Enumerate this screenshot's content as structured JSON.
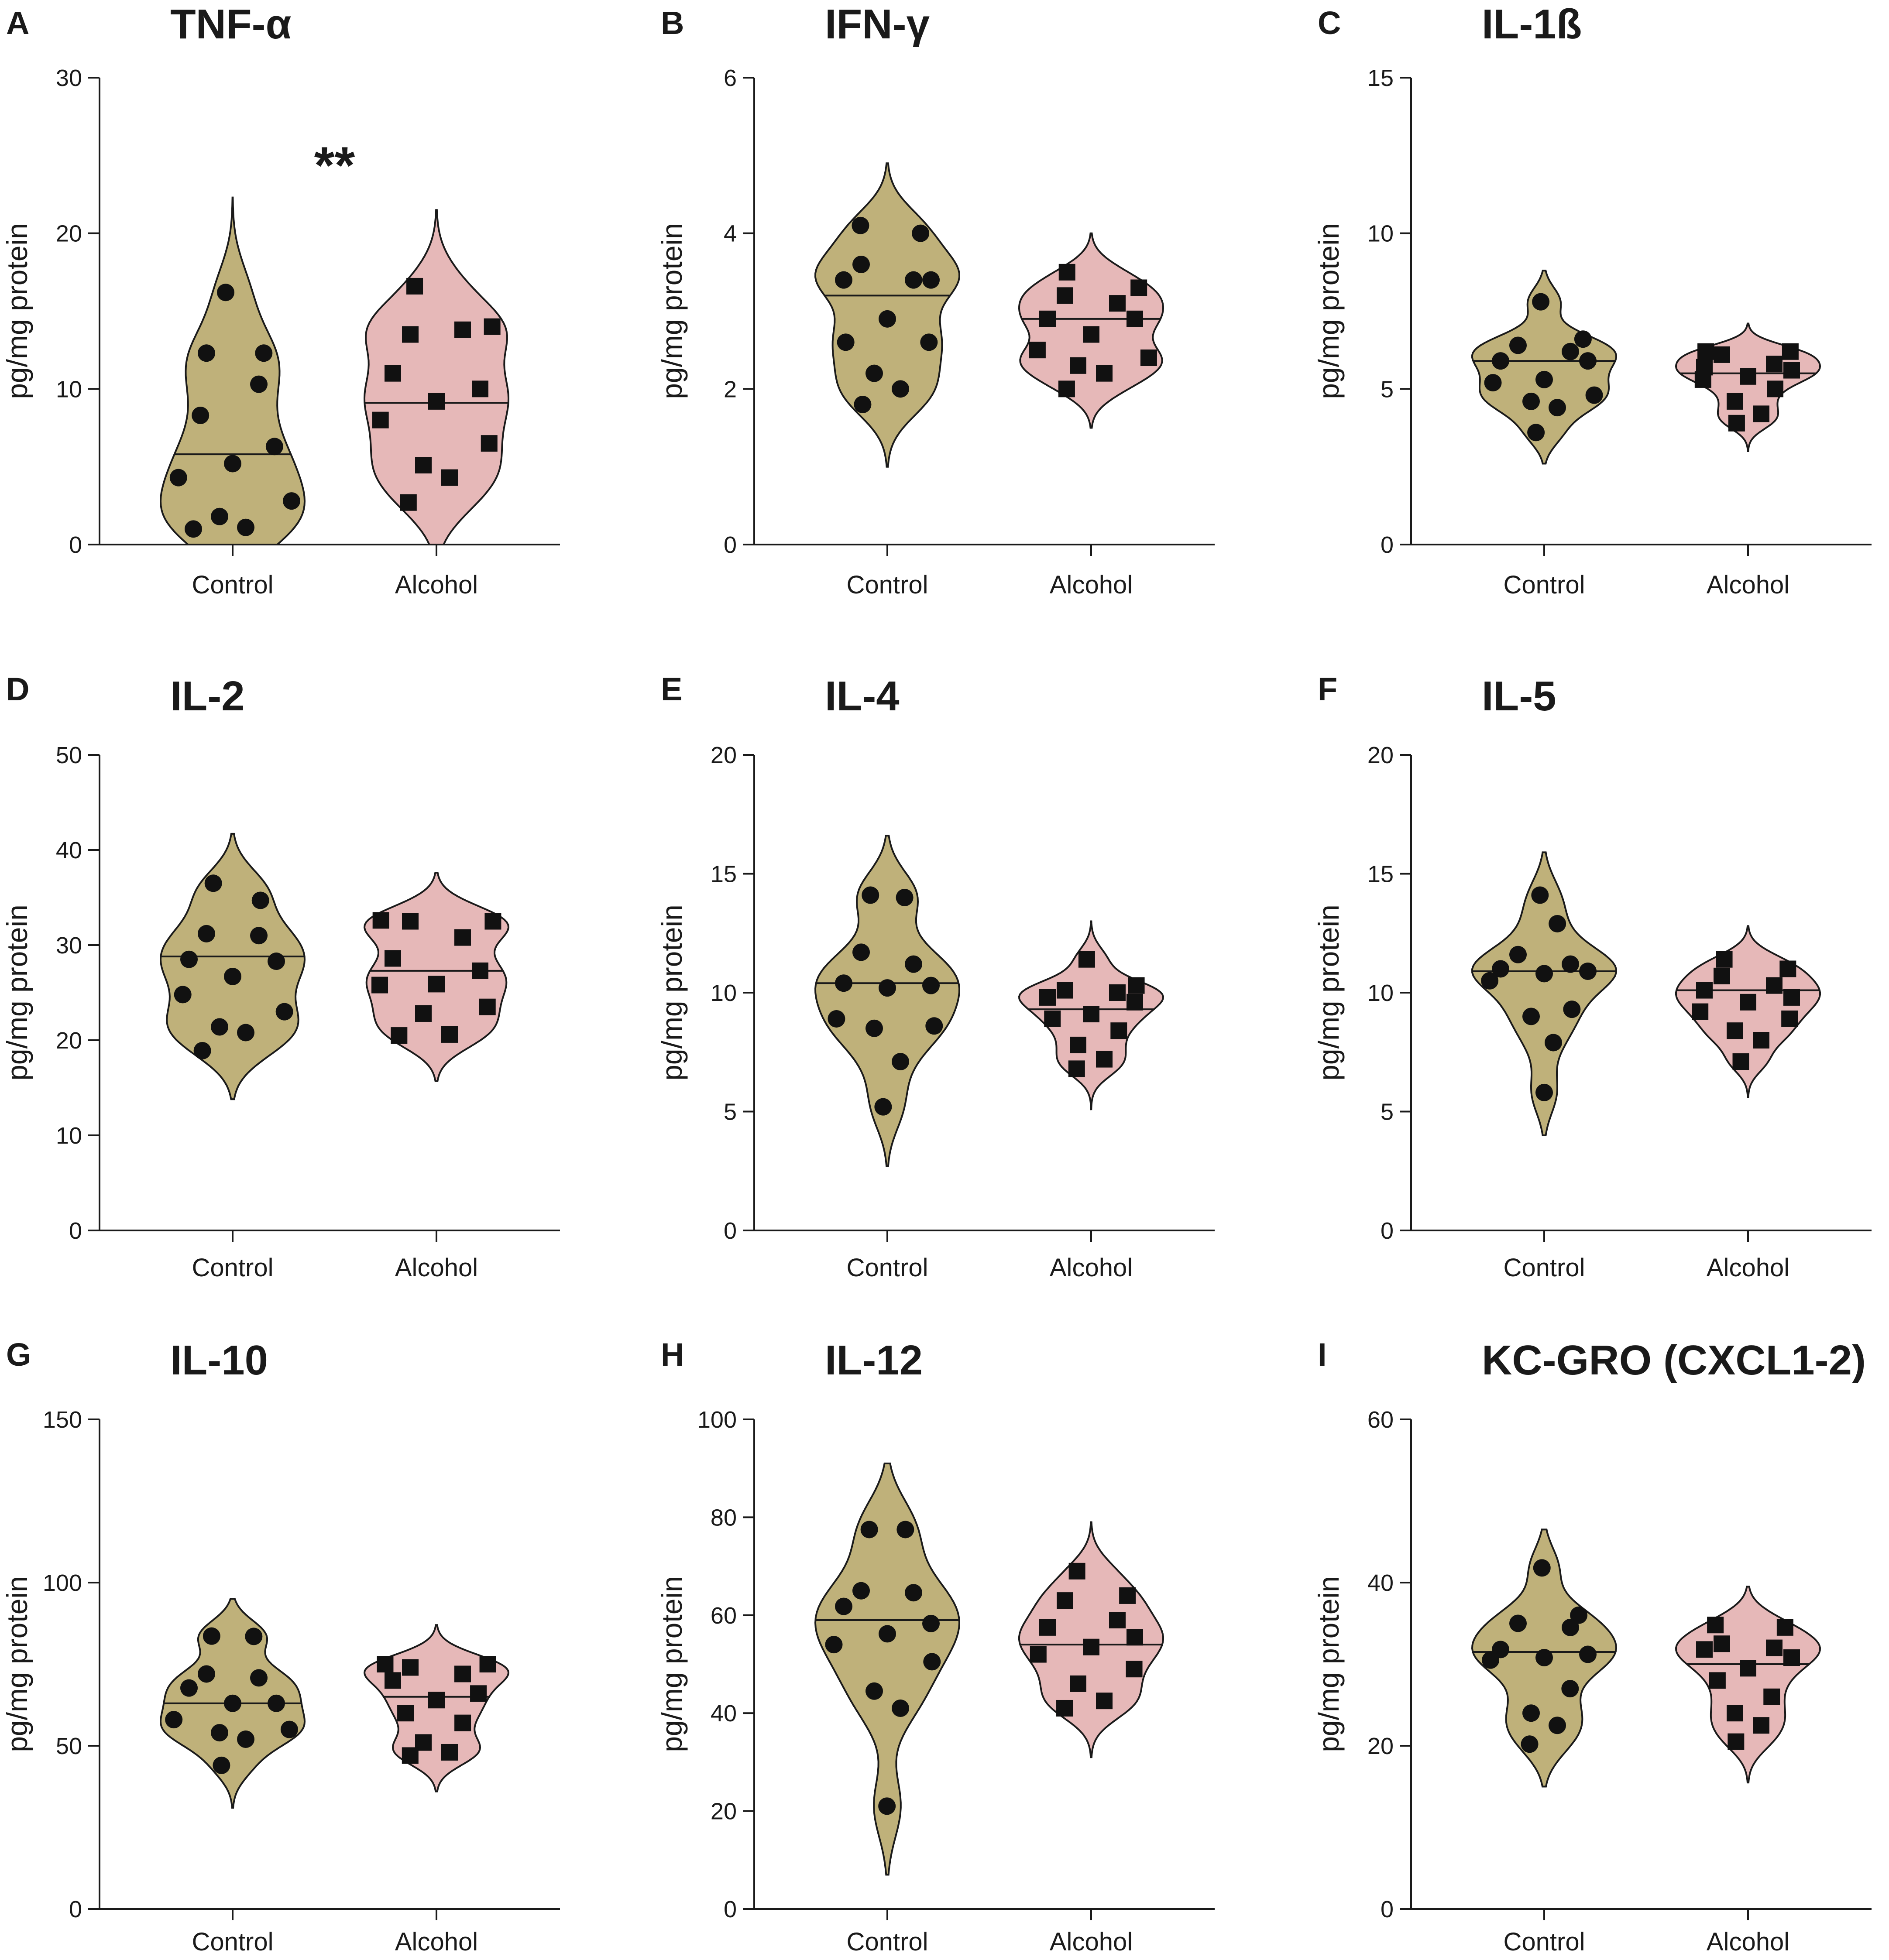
{
  "colors": {
    "control_fill": "#bfb17a",
    "alcohol_fill": "#e6b8b8",
    "marker": "#111111",
    "line": "#1a1a1a"
  },
  "chart_data": [
    {
      "panel": "A",
      "type": "violin",
      "title": "TNF-α",
      "ylabel": "pg/mg protein",
      "ylim": [
        0,
        30
      ],
      "yticks": [
        0,
        10,
        20,
        30
      ],
      "categories": [
        "Control",
        "Alcohol"
      ],
      "significance": "**",
      "series": [
        {
          "name": "Control",
          "marker": "circle",
          "median": 5.8,
          "min": 0,
          "max": 22.3,
          "values": [
            16.2,
            12.3,
            12.3,
            10.3,
            8.3,
            6.3,
            5.2,
            4.3,
            2.8,
            1.8,
            1.1,
            1.0
          ]
        },
        {
          "name": "Alcohol",
          "marker": "square",
          "median": 9.1,
          "min": 0,
          "max": 21.5,
          "values": [
            16.6,
            14.0,
            13.5,
            13.8,
            11.0,
            10.0,
            9.2,
            8.0,
            6.5,
            5.1,
            4.3,
            2.7
          ]
        }
      ]
    },
    {
      "panel": "B",
      "type": "violin",
      "title": "IFN-γ",
      "ylabel": "pg/mg protein",
      "ylim": [
        0,
        6
      ],
      "yticks": [
        0,
        2,
        4,
        6
      ],
      "categories": [
        "Control",
        "Alcohol"
      ],
      "series": [
        {
          "name": "Control",
          "marker": "circle",
          "median": 3.2,
          "min": 1.0,
          "max": 4.9,
          "values": [
            4.1,
            4.0,
            3.6,
            3.4,
            3.4,
            3.4,
            2.9,
            2.6,
            2.6,
            2.2,
            2.0,
            1.8
          ]
        },
        {
          "name": "Alcohol",
          "marker": "square",
          "median": 2.9,
          "min": 1.5,
          "max": 4.0,
          "values": [
            3.5,
            3.3,
            3.2,
            3.1,
            2.9,
            2.9,
            2.7,
            2.5,
            2.4,
            2.3,
            2.2,
            2.0
          ]
        }
      ]
    },
    {
      "panel": "C",
      "type": "violin",
      "title": "IL-1ß",
      "ylabel": "pg/mg protein",
      "ylim": [
        0,
        15
      ],
      "yticks": [
        0,
        5,
        10,
        15
      ],
      "categories": [
        "Control",
        "Alcohol"
      ],
      "series": [
        {
          "name": "Control",
          "marker": "circle",
          "median": 5.9,
          "min": 2.6,
          "max": 8.8,
          "values": [
            7.8,
            6.6,
            6.4,
            6.2,
            5.9,
            5.9,
            5.3,
            5.2,
            4.8,
            4.6,
            4.4,
            3.6
          ]
        },
        {
          "name": "Alcohol",
          "marker": "square",
          "median": 5.5,
          "min": 3.0,
          "max": 7.1,
          "values": [
            6.2,
            6.2,
            6.1,
            5.8,
            5.7,
            5.6,
            5.4,
            5.3,
            5.0,
            4.6,
            4.2,
            3.9
          ]
        }
      ]
    },
    {
      "panel": "D",
      "type": "violin",
      "title": "IL-2",
      "ylabel": "pg/mg protein",
      "ylim": [
        0,
        50
      ],
      "yticks": [
        0,
        10,
        20,
        30,
        40,
        50
      ],
      "categories": [
        "Control",
        "Alcohol"
      ],
      "series": [
        {
          "name": "Control",
          "marker": "circle",
          "median": 28.8,
          "min": 13.8,
          "max": 41.7,
          "values": [
            36.5,
            34.7,
            31.2,
            31.0,
            28.5,
            28.3,
            26.7,
            24.8,
            23.0,
            21.4,
            20.8,
            18.9
          ]
        },
        {
          "name": "Alcohol",
          "marker": "square",
          "median": 27.3,
          "min": 15.7,
          "max": 37.6,
          "values": [
            32.6,
            32.5,
            32.5,
            30.8,
            28.6,
            27.3,
            25.9,
            25.8,
            23.5,
            22.8,
            20.6,
            20.5
          ]
        }
      ]
    },
    {
      "panel": "E",
      "type": "violin",
      "title": "IL-4",
      "ylabel": "pg/mg protein",
      "ylim": [
        0,
        20
      ],
      "yticks": [
        0,
        5,
        10,
        15,
        20
      ],
      "categories": [
        "Control",
        "Alcohol"
      ],
      "series": [
        {
          "name": "Control",
          "marker": "circle",
          "median": 10.4,
          "min": 2.7,
          "max": 16.6,
          "values": [
            14.1,
            14.0,
            11.7,
            11.2,
            10.4,
            10.3,
            10.2,
            8.9,
            8.6,
            8.5,
            7.1,
            5.2
          ]
        },
        {
          "name": "Alcohol",
          "marker": "square",
          "median": 9.3,
          "min": 5.1,
          "max": 13.0,
          "values": [
            11.4,
            10.3,
            10.1,
            10.0,
            9.8,
            9.6,
            9.1,
            8.9,
            8.4,
            7.8,
            7.2,
            6.8
          ]
        }
      ]
    },
    {
      "panel": "F",
      "type": "violin",
      "title": "IL-5",
      "ylabel": "pg/mg protein",
      "ylim": [
        0,
        20
      ],
      "yticks": [
        0,
        5,
        10,
        15,
        20
      ],
      "categories": [
        "Control",
        "Alcohol"
      ],
      "series": [
        {
          "name": "Control",
          "marker": "circle",
          "median": 10.9,
          "min": 4.0,
          "max": 15.9,
          "values": [
            14.1,
            12.9,
            11.6,
            11.2,
            11.0,
            10.9,
            10.8,
            10.5,
            9.3,
            9.0,
            7.9,
            5.8
          ]
        },
        {
          "name": "Alcohol",
          "marker": "square",
          "median": 10.1,
          "min": 5.6,
          "max": 12.8,
          "values": [
            11.4,
            11.0,
            10.7,
            10.3,
            10.1,
            9.8,
            9.6,
            9.2,
            8.9,
            8.4,
            8.0,
            7.1
          ]
        }
      ]
    },
    {
      "panel": "G",
      "type": "violin",
      "title": "IL-10",
      "ylabel": "pg/mg protein",
      "ylim": [
        0,
        150
      ],
      "yticks": [
        0,
        50,
        100,
        150
      ],
      "categories": [
        "Control",
        "Alcohol"
      ],
      "series": [
        {
          "name": "Control",
          "marker": "circle",
          "median": 63.0,
          "min": 31.0,
          "max": 95.0,
          "values": [
            83.6,
            83.5,
            72.0,
            70.8,
            67.7,
            63.0,
            63.0,
            58.0,
            55.0,
            54.0,
            52.0,
            44.0
          ]
        },
        {
          "name": "Alcohol",
          "marker": "square",
          "median": 65.0,
          "min": 36.0,
          "max": 87.0,
          "values": [
            75.0,
            75.0,
            74.0,
            72.0,
            70.0,
            66.0,
            64.0,
            60.0,
            57.0,
            51.0,
            48.0,
            47.0
          ]
        }
      ]
    },
    {
      "panel": "H",
      "type": "violin",
      "title": "IL-12",
      "ylabel": "pg/mg protein",
      "ylim": [
        0,
        100
      ],
      "yticks": [
        0,
        20,
        40,
        60,
        80,
        100
      ],
      "categories": [
        "Control",
        "Alcohol"
      ],
      "series": [
        {
          "name": "Control",
          "marker": "circle",
          "median": 59.0,
          "min": 7.0,
          "max": 91.0,
          "values": [
            77.5,
            77.5,
            65.0,
            64.6,
            61.8,
            58.3,
            56.2,
            54.0,
            50.5,
            44.5,
            41.0,
            21.0
          ]
        },
        {
          "name": "Alcohol",
          "marker": "square",
          "median": 54.0,
          "min": 31.0,
          "max": 79.0,
          "values": [
            69.0,
            64.0,
            63.0,
            59.0,
            57.5,
            55.5,
            53.5,
            52.0,
            49.0,
            46.0,
            42.5,
            41.0
          ]
        }
      ]
    },
    {
      "panel": "I",
      "type": "violin",
      "title": "KC-GRO (CXCL1-2)",
      "ylabel": "pg/mg protein",
      "ylim": [
        0,
        60
      ],
      "yticks": [
        0,
        20,
        40,
        60
      ],
      "categories": [
        "Control",
        "Alcohol"
      ],
      "series": [
        {
          "name": "Control",
          "marker": "circle",
          "median": 31.5,
          "min": 15.0,
          "max": 46.5,
          "values": [
            41.8,
            36.0,
            35.0,
            34.5,
            31.8,
            31.2,
            30.8,
            30.5,
            27.0,
            24.0,
            22.5,
            20.2
          ]
        },
        {
          "name": "Alcohol",
          "marker": "square",
          "median": 30.0,
          "min": 15.5,
          "max": 39.5,
          "values": [
            34.8,
            34.5,
            32.5,
            32.0,
            31.8,
            30.8,
            29.5,
            28.0,
            26.0,
            24.0,
            22.5,
            20.5
          ]
        }
      ]
    }
  ]
}
